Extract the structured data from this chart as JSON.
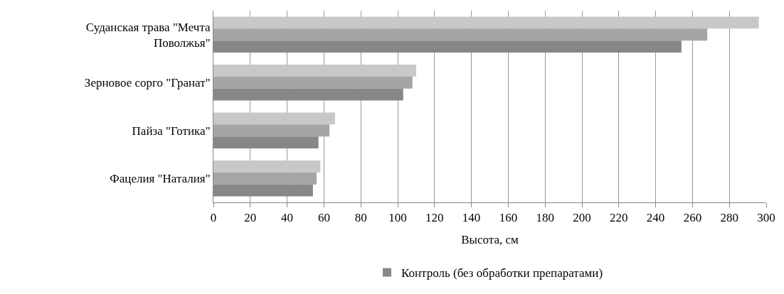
{
  "chart_data": {
    "type": "bar",
    "orientation": "horizontal",
    "xlabel": "Высота, см",
    "categories": [
      "Суданская трава \"Мечта Поволжья\"",
      "Зерновое сорго \"Гранат\"",
      "Пайза \"Готика\"",
      "Фацелия \"Наталия\""
    ],
    "series": [
      {
        "color": "#c8c8c8",
        "values": [
          296,
          110,
          66,
          58
        ]
      },
      {
        "color": "#a5a5a5",
        "values": [
          268,
          108,
          63,
          56
        ]
      },
      {
        "name": "Контроль (без обработки препаратами)",
        "color": "#878787",
        "values": [
          254,
          103,
          57,
          54
        ]
      }
    ],
    "xlim": [
      0,
      300
    ],
    "xticks": [
      0,
      20,
      40,
      60,
      80,
      100,
      120,
      140,
      160,
      180,
      200,
      220,
      240,
      260,
      280,
      300
    ],
    "grid": "x",
    "legend": "bottom"
  }
}
